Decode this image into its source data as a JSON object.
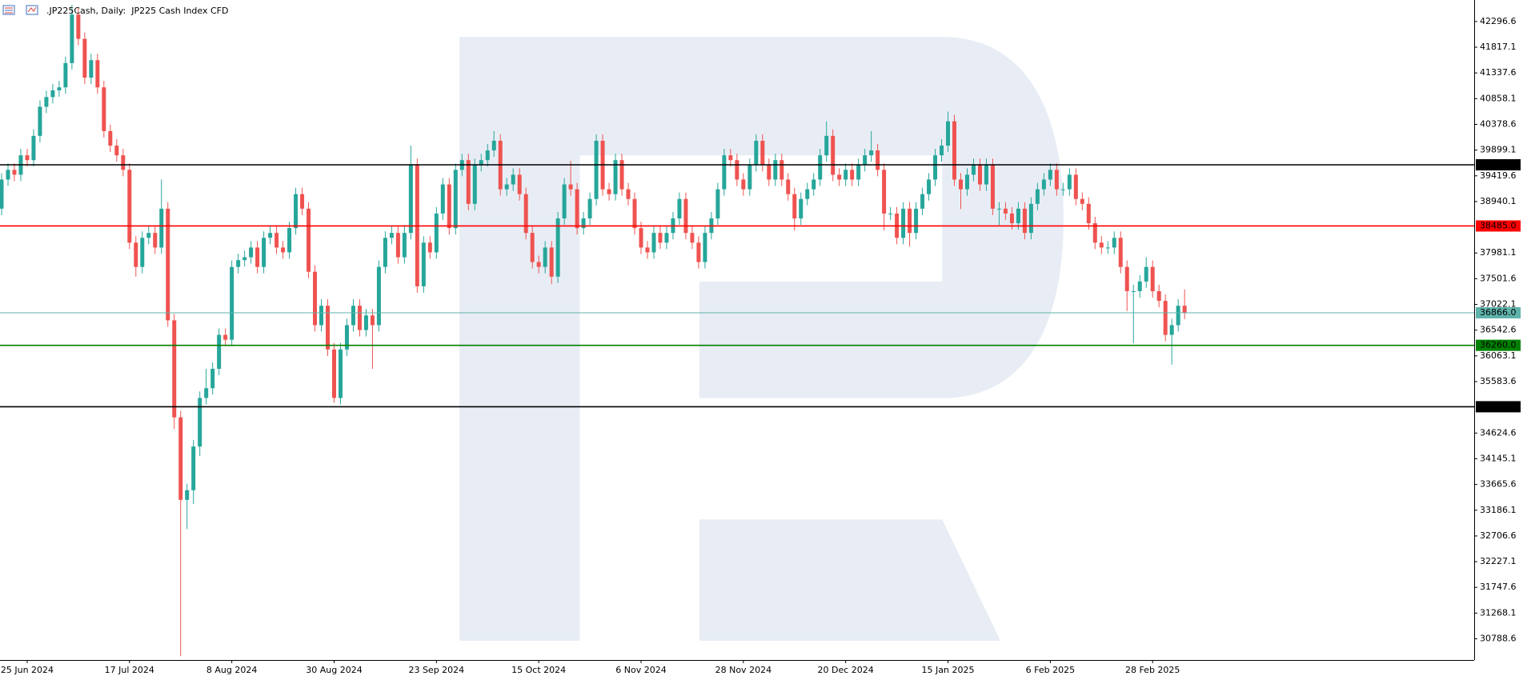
{
  "chart_data": {
    "type": "candlestick",
    "title": ".JP225Cash, Daily:  JP225 Cash Index CFD",
    "categories": [
      null,
      null,
      null,
      null,
      "25 Jun 2024",
      null,
      null,
      null,
      null,
      null,
      null,
      null,
      null,
      null,
      null,
      null,
      null,
      null,
      null,
      null,
      "17 Jul 2024",
      null,
      null,
      null,
      null,
      null,
      null,
      null,
      null,
      null,
      null,
      null,
      null,
      null,
      null,
      null,
      "8 Aug 2024",
      null,
      null,
      null,
      null,
      null,
      null,
      null,
      null,
      null,
      null,
      null,
      null,
      null,
      null,
      null,
      "30 Aug 2024",
      null,
      null,
      null,
      null,
      null,
      null,
      null,
      null,
      null,
      null,
      null,
      null,
      null,
      null,
      null,
      "23 Sep 2024",
      null,
      null,
      null,
      null,
      null,
      null,
      null,
      null,
      null,
      null,
      null,
      null,
      null,
      null,
      null,
      "15 Oct 2024",
      null,
      null,
      null,
      null,
      null,
      null,
      null,
      null,
      null,
      null,
      null,
      null,
      null,
      null,
      null,
      "6 Nov 2024",
      null,
      null,
      null,
      null,
      null,
      null,
      null,
      null,
      null,
      null,
      null,
      null,
      null,
      null,
      null,
      "28 Nov 2024",
      null,
      null,
      null,
      null,
      null,
      null,
      null,
      null,
      null,
      null,
      null,
      null,
      null,
      null,
      null,
      "20 Dec 2024",
      null,
      null,
      null,
      null,
      null,
      null,
      null,
      null,
      null,
      null,
      null,
      null,
      null,
      null,
      null,
      "15 Jan 2025",
      null,
      null,
      null,
      null,
      null,
      null,
      null,
      null,
      null,
      null,
      null,
      null,
      null,
      null,
      null,
      "6 Feb 2025",
      null,
      null,
      null,
      null,
      null,
      null,
      null,
      null,
      null,
      null,
      null,
      null,
      null,
      null,
      null,
      "28 Feb 2025",
      null,
      null,
      null,
      null,
      null
    ],
    "open": [
      38807,
      39350,
      39531,
      39440,
      39802,
      39712,
      40164,
      40707,
      40888,
      41014,
      41069,
      41521,
      42426,
      41973,
      41250,
      41575,
      41069,
      40254,
      39983,
      39802,
      39531,
      38174,
      37721,
      38264,
      38355,
      38083,
      38807,
      36726,
      34917,
      33379,
      33560,
      34374,
      35279,
      35460,
      35822,
      36455,
      36364,
      37721,
      37848,
      37902,
      38083,
      37721,
      38264,
      38355,
      38083,
      37993,
      38445,
      39078,
      38807,
      37631,
      36636,
      36998,
      36183,
      35279,
      36183,
      36636,
      36998,
      36545,
      36817,
      36636,
      37721,
      38264,
      38355,
      37902,
      38355,
      39621,
      37360,
      38174,
      37993,
      38717,
      39259,
      38445,
      39531,
      39712,
      38897,
      39621,
      39712,
      39893,
      40073,
      39169,
      39259,
      39440,
      39078,
      38355,
      37812,
      37721,
      38083,
      37540,
      38626,
      39259,
      39169,
      38445,
      38626,
      38988,
      40073,
      39169,
      39078,
      39712,
      39169,
      38988,
      38445,
      38083,
      37993,
      38355,
      38174,
      38355,
      38626,
      38988,
      38355,
      38174,
      37812,
      38355,
      38626,
      39169,
      39802,
      39712,
      39350,
      39169,
      39621,
      40073,
      39621,
      39350,
      39712,
      39350,
      39078,
      38626,
      38988,
      39169,
      39350,
      39802,
      40164,
      39440,
      39350,
      39531,
      39350,
      39621,
      39802,
      39893,
      39531,
      38717,
      38717,
      38264,
      38807,
      38355,
      38807,
      39078,
      39350,
      39802,
      39983,
      40435,
      39350,
      39169,
      39440,
      39621,
      39259,
      39621,
      38807,
      38807,
      38717,
      38536,
      38807,
      38355,
      38897,
      39169,
      39350,
      39531,
      39169,
      39169,
      39440,
      38988,
      38897,
      38536,
      38174,
      38083,
      38083,
      38264,
      37721,
      37269,
      37269,
      37450,
      37721,
      37269,
      37088,
      36455,
      36636,
      36998
    ],
    "high": [
      39470,
      39651,
      39651,
      39922,
      39922,
      40284,
      40827,
      41008,
      41134,
      41189,
      41641,
      42607,
      42546,
      42093,
      41695,
      41695,
      41189,
      40374,
      40103,
      39922,
      39651,
      38294,
      38384,
      38475,
      38475,
      39350,
      38927,
      36846,
      35037,
      33680,
      34494,
      35400,
      35822,
      35942,
      36575,
      36575,
      37841,
      37968,
      38022,
      38203,
      38203,
      38384,
      38475,
      38475,
      38203,
      38565,
      39198,
      39198,
      38927,
      37751,
      37118,
      37118,
      36303,
      36303,
      36756,
      37118,
      37118,
      36937,
      36937,
      37841,
      38384,
      38475,
      38475,
      38475,
      39983,
      39741,
      38294,
      38294,
      38837,
      39379,
      39379,
      39651,
      39832,
      39832,
      39741,
      39832,
      40013,
      40254,
      40193,
      39379,
      39560,
      39560,
      39198,
      38475,
      37932,
      38203,
      38203,
      38746,
      39379,
      39700,
      39289,
      38746,
      39108,
      40193,
      40193,
      39289,
      39832,
      39832,
      39289,
      39108,
      38565,
      38203,
      38475,
      38475,
      38475,
      38746,
      39108,
      39108,
      38475,
      38294,
      38475,
      38746,
      39289,
      39922,
      39922,
      39832,
      39470,
      39741,
      40193,
      40193,
      39741,
      39832,
      39832,
      39470,
      39198,
      39108,
      39289,
      39470,
      39922,
      40435,
      40284,
      39560,
      39651,
      39651,
      39741,
      39922,
      40254,
      40013,
      39651,
      38837,
      38837,
      38927,
      38927,
      38927,
      39198,
      39470,
      39922,
      40103,
      40616,
      40555,
      39470,
      39560,
      39741,
      39741,
      39741,
      39741,
      38927,
      38927,
      38837,
      38927,
      38927,
      39017,
      39289,
      39470,
      39651,
      39651,
      39289,
      39560,
      39560,
      39108,
      39017,
      38656,
      38294,
      38203,
      38384,
      38384,
      37841,
      37389,
      37570,
      37900,
      37841,
      37389,
      37208,
      36756,
      37118,
      37300
    ],
    "low": [
      38687,
      39230,
      39320,
      39320,
      39592,
      39592,
      40044,
      40587,
      40768,
      40894,
      40949,
      41401,
      41853,
      41130,
      41130,
      40949,
      40134,
      39863,
      39682,
      39411,
      38054,
      37540,
      37601,
      38144,
      37963,
      37963,
      36606,
      34700,
      30464,
      32836,
      33300,
      34200,
      35159,
      35340,
      35702,
      36244,
      36244,
      37601,
      37728,
      37782,
      37601,
      37601,
      38144,
      37963,
      37873,
      37873,
      38325,
      38687,
      37511,
      36516,
      36516,
      36063,
      35190,
      35159,
      36063,
      36516,
      36425,
      36425,
      35822,
      36516,
      37601,
      38144,
      37782,
      37782,
      38235,
      37240,
      37240,
      37873,
      37873,
      38597,
      38325,
      38325,
      39411,
      38777,
      38777,
      39501,
      39592,
      39773,
      39049,
      39049,
      39139,
      38958,
      38235,
      37692,
      37601,
      37601,
      37400,
      37420,
      38506,
      39049,
      38325,
      38325,
      38506,
      38868,
      39049,
      38958,
      38958,
      39049,
      38868,
      38325,
      37963,
      37873,
      37873,
      38054,
      38054,
      38235,
      38506,
      38235,
      38054,
      37692,
      37692,
      38235,
      38506,
      39049,
      39592,
      39230,
      39049,
      39049,
      39501,
      39501,
      39230,
      39230,
      39230,
      38958,
      38400,
      38506,
      38868,
      39049,
      39230,
      39682,
      39320,
      39230,
      39230,
      39230,
      39230,
      39501,
      39682,
      39411,
      38400,
      38597,
      38144,
      38144,
      38100,
      38235,
      38687,
      38958,
      39230,
      39682,
      39863,
      39230,
      38800,
      39049,
      39320,
      39139,
      39139,
      38687,
      38500,
      38597,
      38416,
      38416,
      38235,
      38235,
      38777,
      39049,
      39230,
      39049,
      39049,
      39049,
      38868,
      38777,
      38416,
      38054,
      37963,
      37963,
      37963,
      37601,
      36900,
      36300,
      37149,
      37330,
      37149,
      36968,
      36335,
      35900,
      36516,
      36746
    ],
    "close": [
      39350,
      39531,
      39440,
      39802,
      39712,
      40164,
      40707,
      40888,
      41014,
      41069,
      41521,
      42426,
      41973,
      41250,
      41575,
      41069,
      40254,
      39983,
      39802,
      39531,
      38174,
      37721,
      38264,
      38355,
      38083,
      38807,
      36726,
      34917,
      33379,
      33560,
      34374,
      35279,
      35460,
      35822,
      36455,
      36364,
      37721,
      37848,
      37902,
      38083,
      37721,
      38264,
      38355,
      38083,
      37993,
      38445,
      39078,
      38807,
      37631,
      36636,
      36998,
      36183,
      35279,
      36183,
      36636,
      36998,
      36545,
      36817,
      36636,
      37721,
      38264,
      38355,
      37902,
      38355,
      39621,
      37360,
      38174,
      37993,
      38717,
      39259,
      38445,
      39531,
      39712,
      38897,
      39621,
      39712,
      39893,
      40073,
      39169,
      39259,
      39440,
      39078,
      38355,
      37812,
      37721,
      38083,
      37540,
      38626,
      39259,
      39169,
      38445,
      38626,
      38988,
      40073,
      39169,
      39078,
      39712,
      39169,
      38988,
      38445,
      38083,
      37993,
      38355,
      38174,
      38355,
      38626,
      38988,
      38355,
      38174,
      37812,
      38355,
      38626,
      39169,
      39802,
      39712,
      39350,
      39169,
      39621,
      40073,
      39621,
      39350,
      39712,
      39350,
      39078,
      38626,
      38988,
      39169,
      39350,
      39802,
      40164,
      39440,
      39350,
      39531,
      39350,
      39621,
      39802,
      39893,
      39531,
      38717,
      38717,
      38264,
      38807,
      38355,
      38807,
      39078,
      39350,
      39802,
      39983,
      40435,
      39350,
      39169,
      39440,
      39621,
      39259,
      39621,
      38807,
      38807,
      38717,
      38536,
      38807,
      38355,
      38897,
      39169,
      39350,
      39531,
      39169,
      39169,
      39440,
      38988,
      38897,
      38536,
      38174,
      38083,
      38083,
      38264,
      37721,
      37269,
      37269,
      37450,
      37721,
      37269,
      37088,
      36455,
      36636,
      36998,
      36866
    ],
    "up_color": "#26a69a",
    "down_color": "#ef5350",
    "ylim": [
      30394,
      42697
    ],
    "yticks": [
      42296.6,
      41817.1,
      41337.6,
      40858.1,
      40378.6,
      39899.1,
      39419.6,
      38940.1,
      37981.1,
      37501.6,
      37022.1,
      36542.6,
      36063.1,
      35583.6,
      34624.6,
      34145.1,
      33665.6,
      33186.1,
      32706.6,
      32227.1,
      31747.6,
      31268.1,
      30788.6
    ],
    "levels": [
      {
        "value": 39625,
        "label": "39625.0",
        "color": "#000000"
      },
      {
        "value": 38485,
        "label": "38485.0",
        "color": "#ff0000"
      },
      {
        "value": 36866,
        "label": "36866.0",
        "color": "#5fb3ab"
      },
      {
        "value": 36260,
        "label": "36260.0",
        "color": "#008000"
      },
      {
        "value": 35115,
        "label": "35115.0",
        "color": "#000000"
      }
    ],
    "grid": false
  }
}
